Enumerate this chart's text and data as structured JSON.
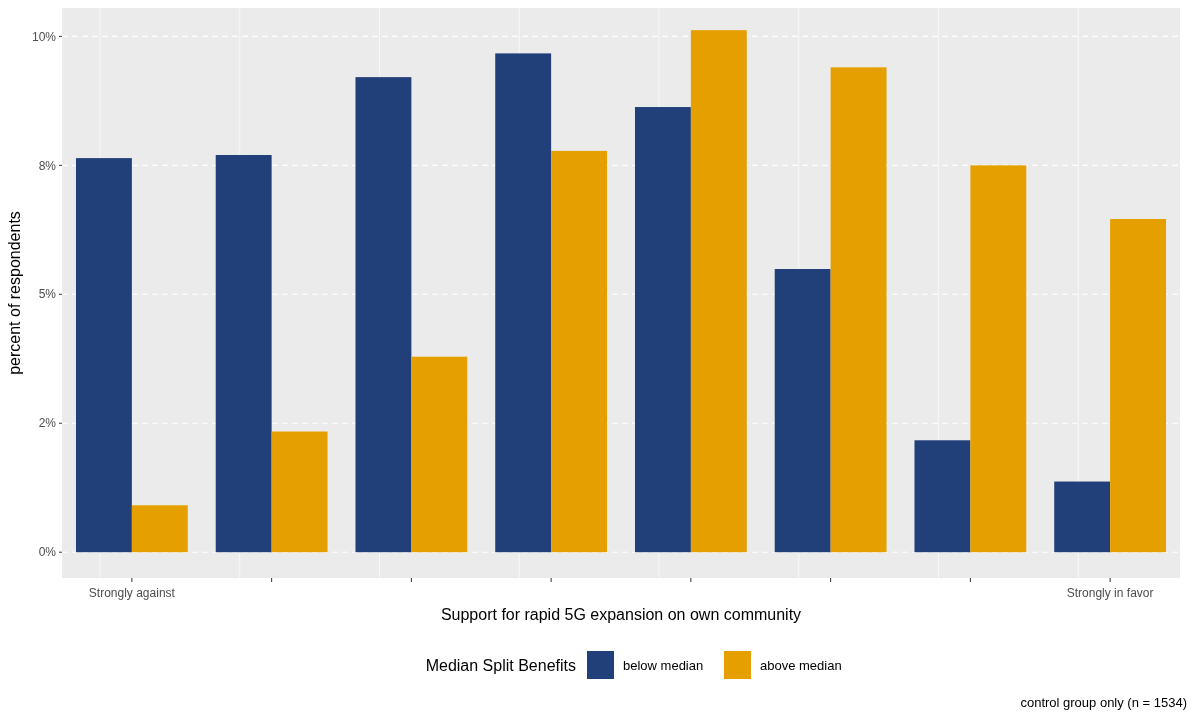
{
  "chart_data": {
    "type": "bar",
    "xlabel": "Support for rapid 5G expansion on own community",
    "ylabel": "percent of respondents",
    "legend_title": "Median Split Benefits",
    "categories": [
      "Strongly against",
      null,
      null,
      null,
      null,
      null,
      null,
      "Strongly in favor"
    ],
    "series": [
      {
        "name": "below median",
        "color": "#21407a",
        "values": [
          7.64,
          7.7,
          9.21,
          9.67,
          8.63,
          5.49,
          2.17,
          1.37
        ]
      },
      {
        "name": "above median",
        "color": "#e5a000",
        "values": [
          0.91,
          2.34,
          3.79,
          7.78,
          10.12,
          9.4,
          7.5,
          6.46
        ]
      }
    ],
    "ylim": [
      -0.5,
      10.55
    ],
    "yticks": [
      {
        "value": 0,
        "label": "0%"
      },
      {
        "value": 2.5,
        "label": "2%"
      },
      {
        "value": 5,
        "label": "5%"
      },
      {
        "value": 7.5,
        "label": "8%"
      },
      {
        "value": 10,
        "label": "10%"
      }
    ],
    "grid": true,
    "line_style": "dashed",
    "legend": "bottom",
    "annotations": [
      "control group only (n = 1534)"
    ]
  }
}
